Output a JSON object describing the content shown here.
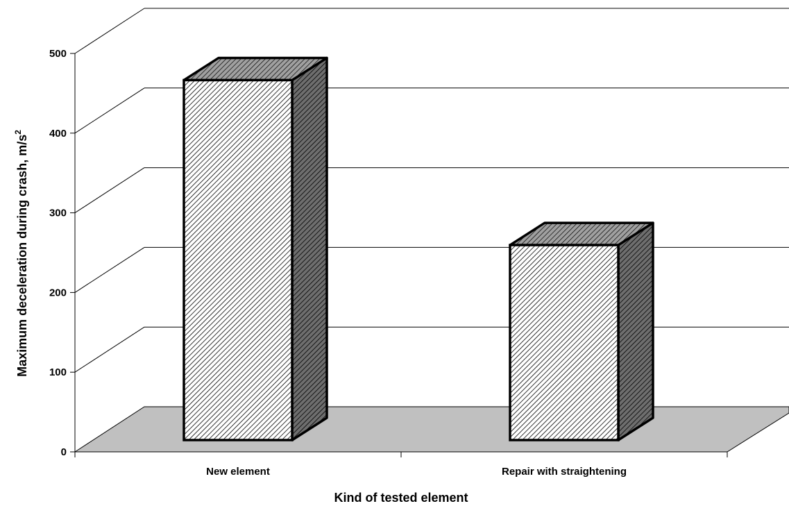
{
  "chart_data": {
    "type": "bar",
    "categories": [
      "New element",
      "Repair with straightening"
    ],
    "values": [
      470,
      263
    ],
    "xlabel": "Kind of tested element",
    "ylabel": "Maximum deceleration during crash, m/s",
    "ylabel_superscript": "2",
    "ylim": [
      0,
      500
    ],
    "yticks": [
      0,
      100,
      200,
      300,
      400,
      500
    ],
    "grid": true,
    "legend": "none",
    "style": "3d-column",
    "colors": {
      "bar_front": "#ffffff",
      "bar_hatch": "#000000",
      "bar_side": "#6e6e6e",
      "floor": "#c0c0c0",
      "grid": "#000000"
    }
  }
}
